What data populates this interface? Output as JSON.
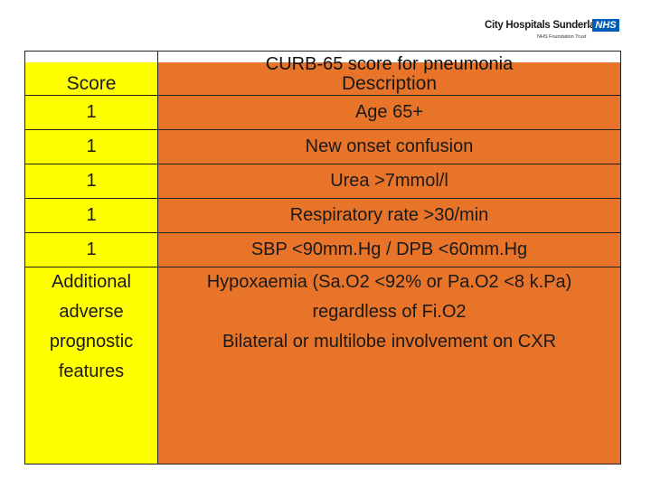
{
  "logo": {
    "name": "City Hospitals Sunderland",
    "nhs": "NHS",
    "trust": "NHS Foundation Trust"
  },
  "table": {
    "title": "CURB-65 score for pneumonia",
    "headers": {
      "score": "Score",
      "description": "Description"
    },
    "rows": [
      {
        "score": "1",
        "description": "Age 65+"
      },
      {
        "score": "1",
        "description": "New onset confusion"
      },
      {
        "score": "1",
        "description": "Urea >7mmol/l"
      },
      {
        "score": "1",
        "description": "Respiratory rate >30/min"
      },
      {
        "score": "1",
        "description": "SBP <90mm.Hg / DPB <60mm.Hg"
      }
    ],
    "additional": {
      "score_lines": [
        "Additional",
        "adverse",
        "prognostic",
        "features"
      ],
      "description_lines": [
        "Hypoxaemia (Sa.O2 <92% or Pa.O2 <8 k.Pa)",
        "regardless of Fi.O2",
        "Bilateral or multilobe involvement on CXR"
      ]
    }
  },
  "colors": {
    "score_column": "#ffff00",
    "description_column": "#e8742a",
    "nhs_blue": "#005eb8"
  }
}
